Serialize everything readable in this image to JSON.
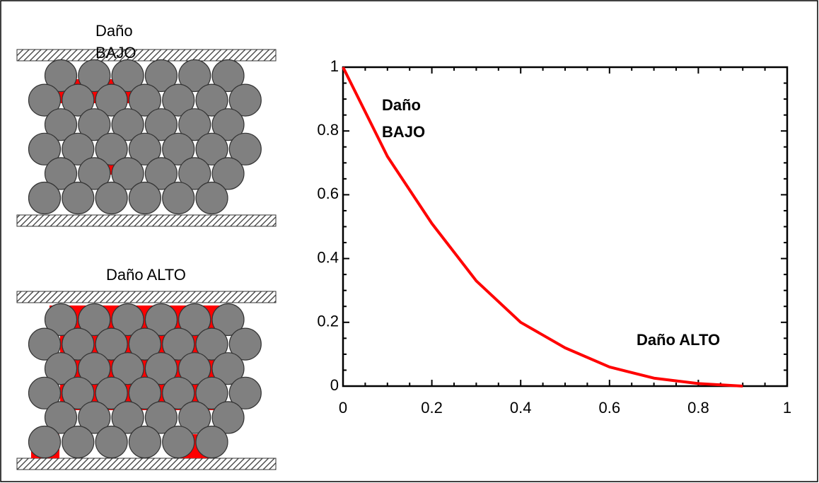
{
  "diagram": {
    "labels": [
      "Daño",
      "BAJO",
      "Daño ALTO"
    ]
  },
  "chart_data": {
    "type": "line",
    "x": [
      0,
      0.1,
      0.2,
      0.3,
      0.4,
      0.5,
      0.6,
      0.7,
      0.8,
      0.9
    ],
    "series": [
      {
        "color": "#ff0000",
        "values": [
          1,
          0.72,
          0.51,
          0.33,
          0.2,
          0.12,
          0.06,
          0.025,
          0.008,
          0
        ]
      }
    ],
    "xlim": [
      0,
      1
    ],
    "ylim": [
      0,
      1
    ],
    "xticks": [
      0,
      0.2,
      0.4,
      0.6,
      0.8,
      1
    ],
    "yticks": [
      0,
      0.2,
      0.4,
      0.6,
      0.8,
      1
    ],
    "annotations": [
      {
        "lines": [
          "Daño",
          "BAJO"
        ]
      },
      {
        "lines": [
          "Daño ALTO"
        ]
      }
    ]
  }
}
